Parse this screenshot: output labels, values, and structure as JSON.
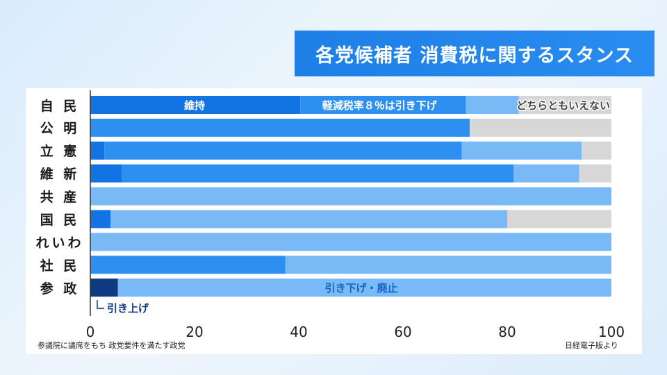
{
  "title": "各党候補者 消費税に関するスタンス",
  "footnote_left": "参議院に議席をもち 政党要件を満たす政党",
  "footnote_right": "日経電子版より",
  "colors": {
    "hike": "#0d3a80",
    "keep": "#1273e3",
    "reduce_food": "#2d8ff0",
    "cut_abolish": "#79baf6",
    "undecided": "#d7d7d7"
  },
  "chart_data": {
    "type": "bar",
    "orientation": "horizontal",
    "stacked": true,
    "categories": [
      "自 民",
      "公 明",
      "立 憲",
      "維 新",
      "共 産",
      "国 民",
      "れいわ",
      "社 民",
      "参 政"
    ],
    "xlim": [
      0,
      100
    ],
    "xticks": [
      "0",
      "20",
      "40",
      "60",
      "80",
      "100"
    ],
    "series": [
      {
        "name": "引き上げ",
        "color": "#0d3a80",
        "values": [
          0,
          0,
          0,
          0,
          0,
          0,
          0,
          0,
          5.3
        ]
      },
      {
        "name": "維持",
        "color": "#1273e3",
        "values": [
          40.3,
          0,
          2.7,
          6.1,
          0,
          3.9,
          0,
          0,
          0
        ]
      },
      {
        "name": "軽減税率８％は引き下げ",
        "color": "#2d8ff0",
        "values": [
          31.8,
          72.8,
          68.6,
          75.1,
          0,
          0,
          0,
          37.4,
          0
        ]
      },
      {
        "name": "引き下げ・廃止",
        "color": "#79baf6",
        "values": [
          10.1,
          0,
          23.0,
          12.6,
          100,
          76.1,
          100,
          62.6,
          94.7
        ]
      },
      {
        "name": "どちらともいえない",
        "color": "#d7d7d7",
        "values": [
          17.8,
          27.2,
          5.7,
          6.2,
          0,
          20.0,
          0,
          0,
          0
        ]
      }
    ],
    "annotations": [
      "維持",
      "軽減税率８％は引き下げ",
      "どちらともいえない",
      "引き下げ・廃止",
      "引き上げ"
    ]
  }
}
